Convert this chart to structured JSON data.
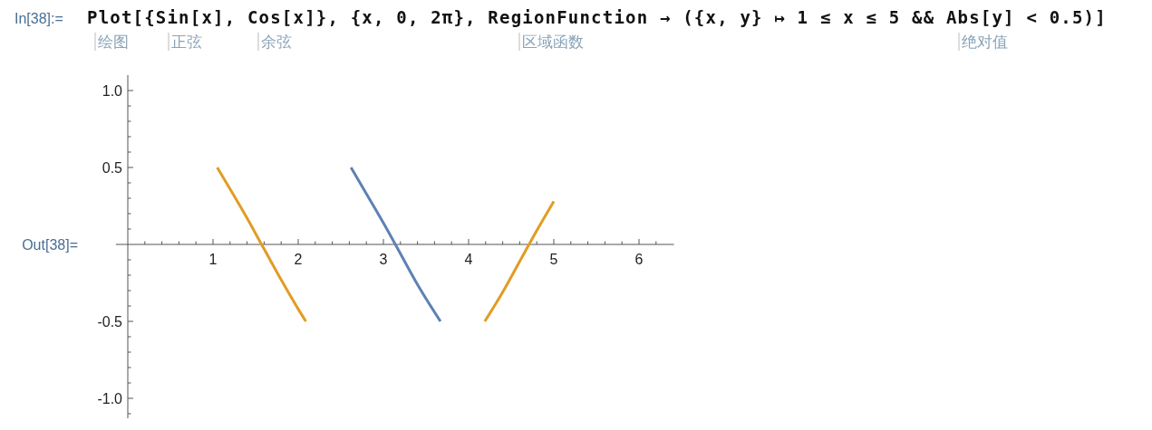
{
  "chart_data": {
    "type": "line",
    "annotations": [
      "In[38]:=",
      "Plot[{Sin[x], Cos[x]}, {x, 0, 2π}, RegionFunction → ({x, y} ↦  1 ≤ x ≤ 5 && Abs[y] < 0.5)]",
      "绘图",
      "正弦",
      "余弦",
      "区域函数",
      "绝对值",
      "Out[38]="
    ],
    "series": [
      {
        "color": "#5e81b5",
        "x": [
          2.62,
          2.8,
          3.0,
          3.2,
          3.4,
          3.67
        ],
        "values": [
          0.5,
          0.33,
          0.14,
          -0.06,
          -0.26,
          -0.5
        ]
      },
      {
        "color": "#e19c24",
        "x": [
          1.05,
          1.2,
          1.4,
          1.6,
          1.8,
          2.0,
          2.09,
          3.0,
          4.19,
          4.4,
          4.6,
          4.8,
          5.0
        ],
        "values": [
          0.5,
          0.36,
          0.17,
          -0.03,
          -0.23,
          -0.42,
          -0.5,
          null,
          -0.5,
          -0.31,
          -0.11,
          0.09,
          0.28
        ]
      }
    ],
    "xlim": [
      -0.14,
      6.41
    ],
    "ylim": [
      -1.13,
      1.1
    ],
    "xticks": [
      {
        "value": 0.2,
        "label": null
      },
      {
        "value": 0.4,
        "label": null
      },
      {
        "value": 0.6,
        "label": null
      },
      {
        "value": 0.8,
        "label": null
      },
      1,
      {
        "value": 1.2,
        "label": null
      },
      {
        "value": 1.4,
        "label": null
      },
      {
        "value": 1.6,
        "label": null
      },
      {
        "value": 1.8,
        "label": null
      },
      2,
      {
        "value": 2.2,
        "label": null
      },
      {
        "value": 2.4,
        "label": null
      },
      {
        "value": 2.6,
        "label": null
      },
      {
        "value": 2.8,
        "label": null
      },
      3,
      {
        "value": 3.2,
        "label": null
      },
      {
        "value": 3.4,
        "label": null
      },
      {
        "value": 3.6,
        "label": null
      },
      {
        "value": 3.8,
        "label": null
      },
      4,
      {
        "value": 4.2,
        "label": null
      },
      {
        "value": 4.4,
        "label": null
      },
      {
        "value": 4.6,
        "label": null
      },
      {
        "value": 4.8,
        "label": null
      },
      5,
      {
        "value": 5.2,
        "label": null
      },
      {
        "value": 5.4,
        "label": null
      },
      {
        "value": 5.6,
        "label": null
      },
      {
        "value": 5.8,
        "label": null
      },
      6,
      {
        "value": 6.2,
        "label": null
      }
    ],
    "yticks": [
      {
        "value": -1.1,
        "label": null
      },
      {
        "value": -1,
        "label": "-1.0"
      },
      {
        "value": -0.9,
        "label": null
      },
      {
        "value": -0.8,
        "label": null
      },
      {
        "value": -0.7,
        "label": null
      },
      {
        "value": -0.6,
        "label": null
      },
      -0.5,
      {
        "value": -0.4,
        "label": null
      },
      {
        "value": -0.3,
        "label": null
      },
      {
        "value": -0.2,
        "label": null
      },
      {
        "value": -0.1,
        "label": null
      },
      {
        "value": 0.1,
        "label": null
      },
      {
        "value": 0.2,
        "label": null
      },
      {
        "value": 0.3,
        "label": null
      },
      {
        "value": 0.4,
        "label": null
      },
      0.5,
      {
        "value": 0.6,
        "label": null
      },
      {
        "value": 0.7,
        "label": null
      },
      {
        "value": 0.8,
        "label": null
      },
      {
        "value": 0.9,
        "label": null
      },
      {
        "value": 1,
        "label": "1.0"
      }
    ],
    "grid": false,
    "marker": "none",
    "line_style": "solid"
  }
}
